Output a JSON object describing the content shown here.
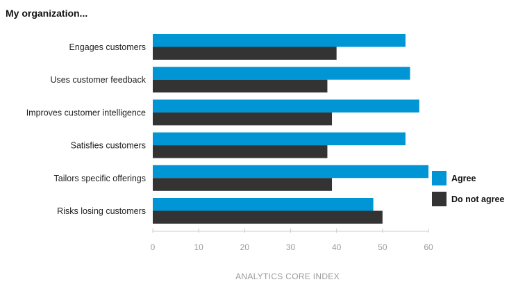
{
  "chart_data": {
    "type": "bar",
    "orientation": "horizontal",
    "title": "My organization...",
    "xlabel": "ANALYTICS CORE INDEX",
    "ylabel": "",
    "xlim": [
      0,
      60
    ],
    "ticks": [
      0,
      10,
      20,
      30,
      40,
      50,
      60
    ],
    "grid": false,
    "legend_position": "right",
    "categories": [
      "Engages customers",
      "Uses customer feedback",
      "Improves customer intelligence",
      "Satisfies customers",
      "Tailors specific offerings",
      "Risks losing customers"
    ],
    "series": [
      {
        "name": "Agree",
        "color": "#0096d6",
        "values": [
          55,
          56,
          58,
          55,
          60,
          48
        ]
      },
      {
        "name": "Do not agree",
        "color": "#333333",
        "values": [
          40,
          38,
          39,
          38,
          39,
          50
        ]
      }
    ]
  }
}
